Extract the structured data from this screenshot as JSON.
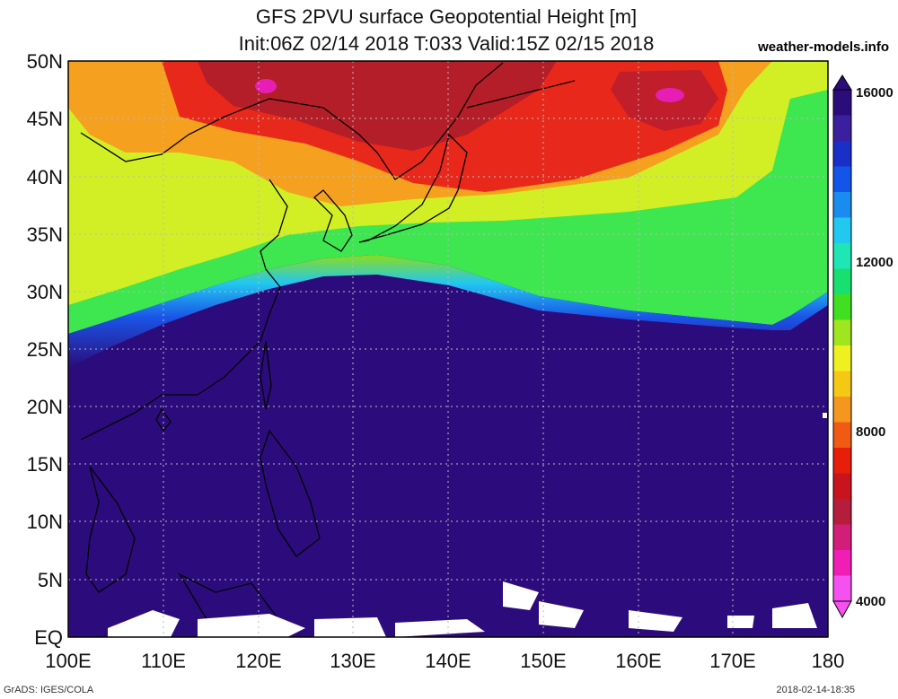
{
  "title": {
    "line1": "GFS 2PVU surface Geopotential Height [m]",
    "line2": "Init:06Z 02/14 2018 T:033 Valid:15Z 02/15 2018"
  },
  "site": "weather-models.info",
  "lat_labels": [
    "50N",
    "45N",
    "40N",
    "35N",
    "30N",
    "25N",
    "20N",
    "15N",
    "10N",
    "5N",
    "EQ"
  ],
  "lon_labels": [
    "100E",
    "110E",
    "120E",
    "130E",
    "140E",
    "150E",
    "160E",
    "170E",
    "180"
  ],
  "colorbar": {
    "labels": [
      "16000",
      "12000",
      "8000",
      "4000"
    ],
    "colors": [
      "#2a0c7a",
      "#3a1f9e",
      "#1a2ec8",
      "#1255e8",
      "#1a8cf0",
      "#22c8f0",
      "#1ee6b4",
      "#18e070",
      "#40e020",
      "#a0e61e",
      "#f0f020",
      "#f5c814",
      "#f5961e",
      "#f05a14",
      "#e61e0a",
      "#c8141e",
      "#b41e3c",
      "#d21e78",
      "#f01eb4",
      "#f550f0"
    ]
  },
  "footer": {
    "left": "GrADS: IGES/COLA",
    "right": "2018-02-14-18:35"
  }
}
